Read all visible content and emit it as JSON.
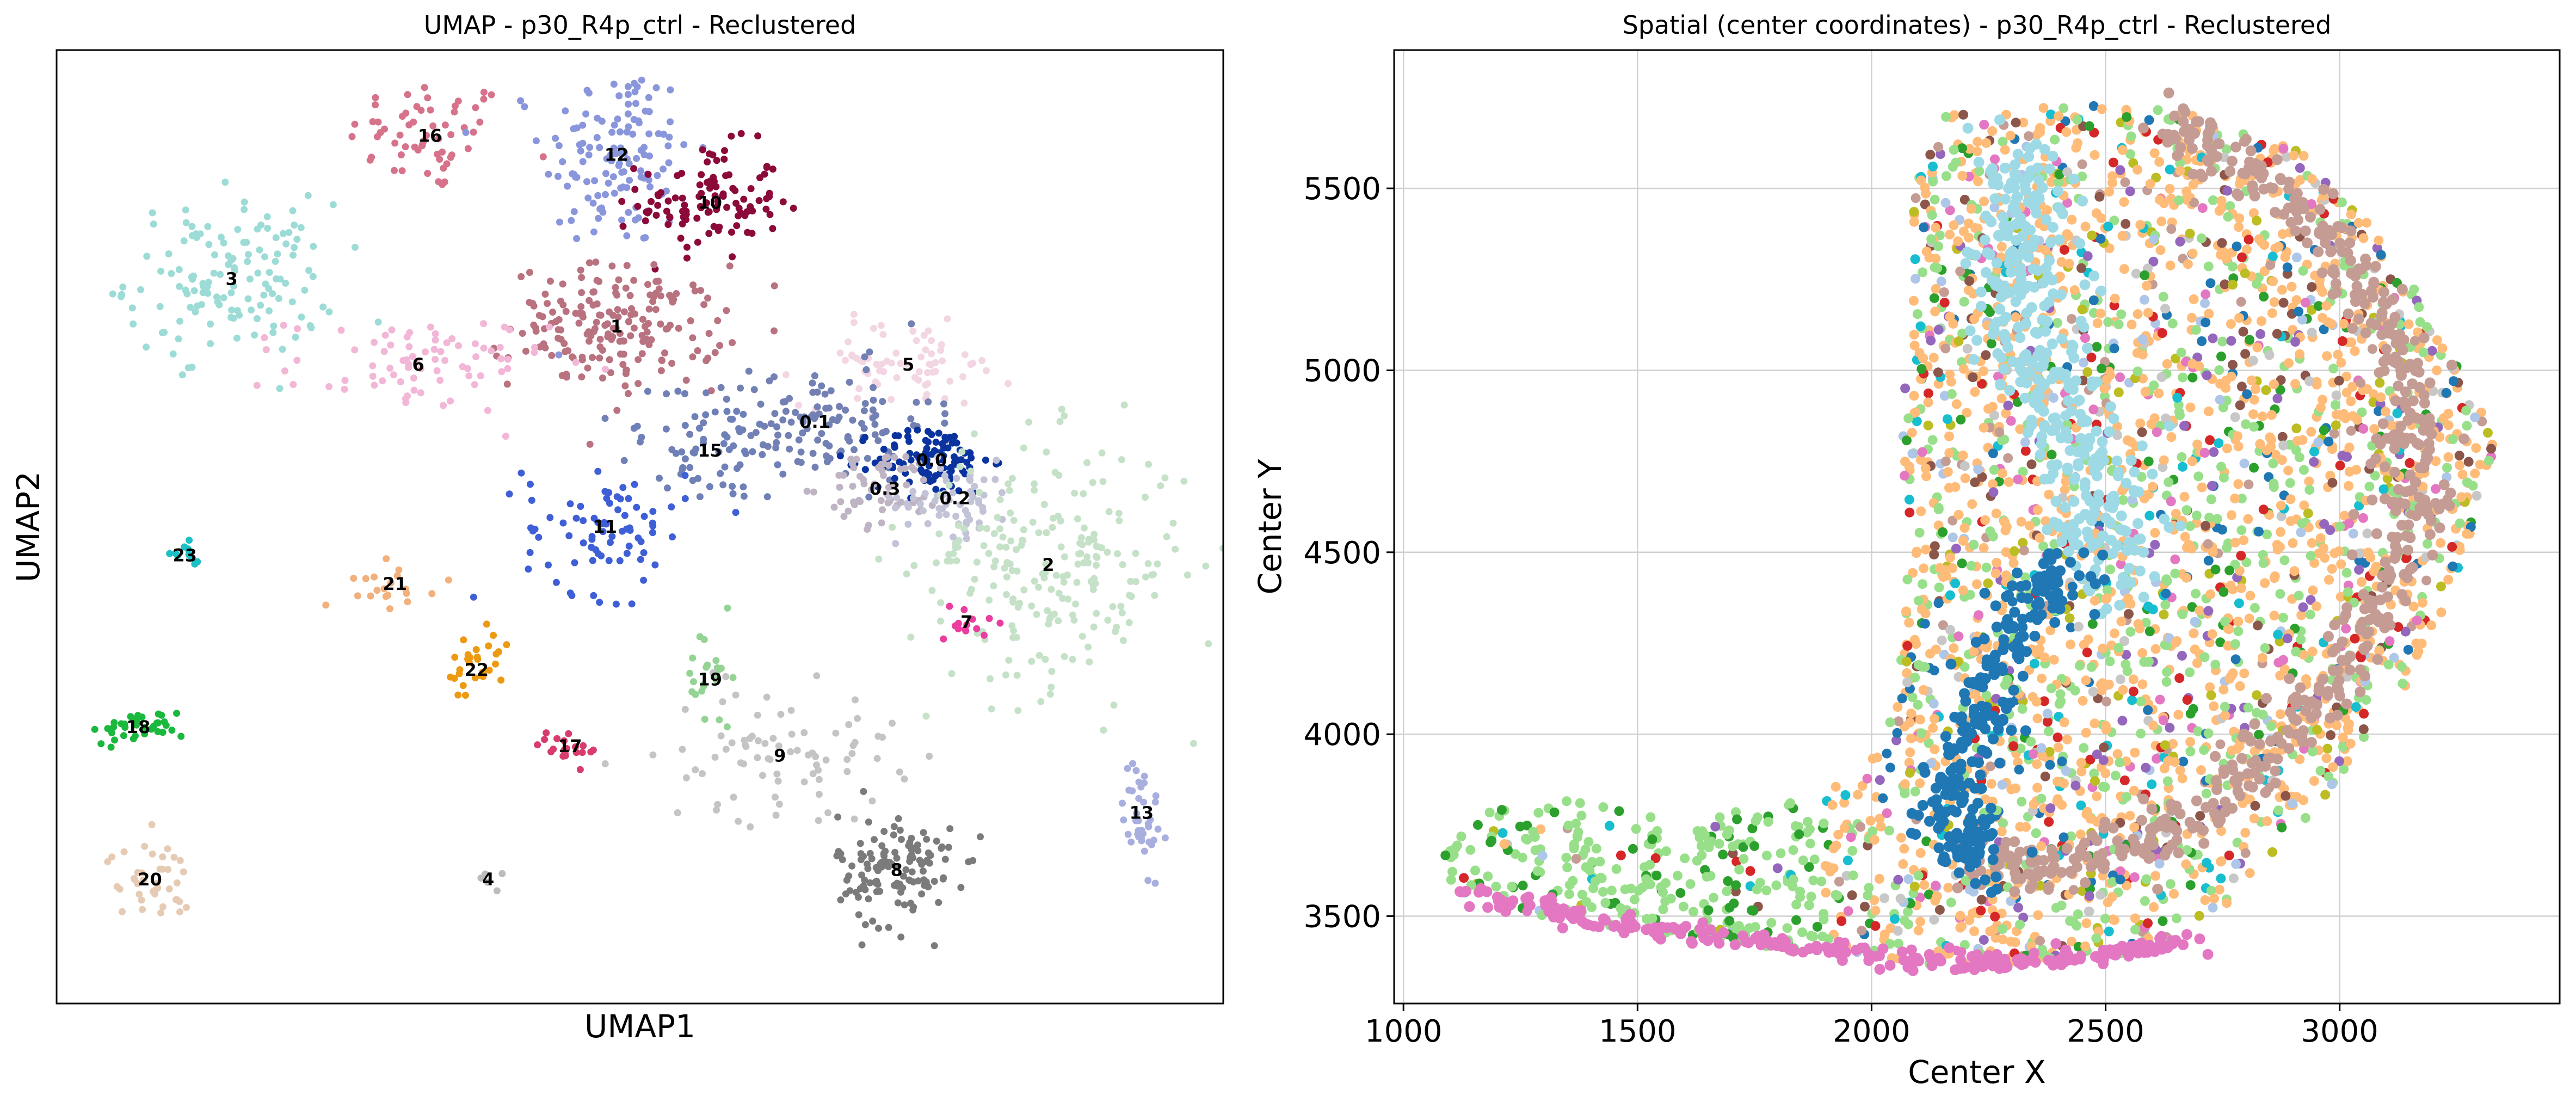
{
  "chart_data": [
    {
      "type": "scatter",
      "title": "UMAP - p30_R4p_ctrl - Reclustered",
      "xlabel": "UMAP1",
      "ylabel": "UMAP2",
      "xlim": [
        0,
        100
      ],
      "ylim": [
        0,
        100
      ],
      "grid": false,
      "clusters": [
        {
          "label": "16",
          "x": 32,
          "y": 91,
          "sx": 3.5,
          "sy": 3.0,
          "n": 60,
          "color": "#d6728a"
        },
        {
          "label": "12",
          "x": 48,
          "y": 89,
          "sx": 3.2,
          "sy": 5.0,
          "n": 130,
          "color": "#8a96dc"
        },
        {
          "label": "10",
          "x": 56,
          "y": 84,
          "sx": 3.0,
          "sy": 3.0,
          "n": 110,
          "color": "#8b0a3a"
        },
        {
          "label": "3",
          "x": 15,
          "y": 76,
          "sx": 4.5,
          "sy": 4.0,
          "n": 140,
          "color": "#9ddcd6"
        },
        {
          "label": "1",
          "x": 48,
          "y": 71,
          "sx": 4.5,
          "sy": 3.2,
          "n": 190,
          "color": "#b9727f"
        },
        {
          "label": "6",
          "x": 31,
          "y": 67,
          "sx": 5.5,
          "sy": 2.5,
          "n": 80,
          "color": "#f2b6d6"
        },
        {
          "label": "5",
          "x": 73,
          "y": 67,
          "sx": 4.5,
          "sy": 2.2,
          "n": 70,
          "color": "#f3d6e3"
        },
        {
          "label": "0.1",
          "x": 65,
          "y": 61,
          "sx": 5.0,
          "sy": 3.0,
          "n": 120,
          "color": "#7280b3"
        },
        {
          "label": "0.0",
          "x": 75,
          "y": 57,
          "sx": 2.5,
          "sy": 1.8,
          "n": 110,
          "color": "#0a33a0"
        },
        {
          "label": "15",
          "x": 56,
          "y": 58,
          "sx": 4.5,
          "sy": 3.0,
          "n": 60,
          "color": "#6f80b8"
        },
        {
          "label": "0.3",
          "x": 71,
          "y": 54,
          "sx": 2.5,
          "sy": 2.0,
          "n": 60,
          "color": "#bfb4c4"
        },
        {
          "label": "0.2",
          "x": 77,
          "y": 53,
          "sx": 2.5,
          "sy": 2.0,
          "n": 60,
          "color": "#c3c3d8"
        },
        {
          "label": "11",
          "x": 47,
          "y": 50,
          "sx": 3.5,
          "sy": 3.5,
          "n": 80,
          "color": "#3f5fd6"
        },
        {
          "label": "2",
          "x": 85,
          "y": 46,
          "sx": 6.0,
          "sy": 6.5,
          "n": 220,
          "color": "#c5e1c8"
        },
        {
          "label": "23",
          "x": 11,
          "y": 47,
          "sx": 0.6,
          "sy": 0.6,
          "n": 10,
          "color": "#1cc0c6"
        },
        {
          "label": "21",
          "x": 29,
          "y": 44,
          "sx": 2.0,
          "sy": 1.2,
          "n": 20,
          "color": "#f1b07c"
        },
        {
          "label": "7",
          "x": 78,
          "y": 40,
          "sx": 1.0,
          "sy": 1.2,
          "n": 15,
          "color": "#ea3d9f"
        },
        {
          "label": "22",
          "x": 36,
          "y": 35,
          "sx": 1.5,
          "sy": 2.0,
          "n": 30,
          "color": "#ec9a12"
        },
        {
          "label": "19",
          "x": 56,
          "y": 34,
          "sx": 1.0,
          "sy": 3.0,
          "n": 25,
          "color": "#94d394"
        },
        {
          "label": "18",
          "x": 7,
          "y": 29,
          "sx": 2.0,
          "sy": 0.8,
          "n": 35,
          "color": "#1bb83e"
        },
        {
          "label": "17",
          "x": 44,
          "y": 27,
          "sx": 1.5,
          "sy": 1.0,
          "n": 20,
          "color": "#d83c6c"
        },
        {
          "label": "9",
          "x": 62,
          "y": 26,
          "sx": 5.0,
          "sy": 3.5,
          "n": 80,
          "color": "#c4c4c4"
        },
        {
          "label": "13",
          "x": 93,
          "y": 20,
          "sx": 0.8,
          "sy": 3.0,
          "n": 40,
          "color": "#a8aede"
        },
        {
          "label": "20",
          "x": 8,
          "y": 13,
          "sx": 1.8,
          "sy": 2.0,
          "n": 40,
          "color": "#e6cbb4"
        },
        {
          "label": "8",
          "x": 72,
          "y": 14,
          "sx": 2.5,
          "sy": 3.0,
          "n": 130,
          "color": "#7b7b7b"
        },
        {
          "label": "4",
          "x": 37,
          "y": 13,
          "sx": 0.6,
          "sy": 0.6,
          "n": 5,
          "color": "#bcbcbc"
        }
      ]
    },
    {
      "type": "scatter",
      "title": "Spatial (center coordinates) - p30_R4p_ctrl - Reclustered",
      "xlabel": "Center X",
      "ylabel": "Center Y",
      "xlim": [
        980,
        3470
      ],
      "ylim": [
        3260,
        5880
      ],
      "xticks": [
        "1000",
        "1500",
        "2000",
        "2500",
        "3000"
      ],
      "yticks": [
        "3500",
        "4000",
        "4500",
        "5000",
        "5500"
      ],
      "grid": true,
      "palette": [
        "#98df8a",
        "#ffbb78",
        "#2ca02c",
        "#1f77b4",
        "#9467bd",
        "#c49c94",
        "#bcbd22",
        "#d62728",
        "#e377c2",
        "#c7c7c7",
        "#17becf",
        "#aec7e8",
        "#8c564b"
      ],
      "bands": [
        {
          "name": "light-blue band",
          "color": "#9edae5",
          "points": [
            [
              2300,
              5580
            ],
            [
              2330,
              5450
            ],
            [
              2300,
              5300
            ],
            [
              2320,
              5150
            ],
            [
              2380,
              5000
            ],
            [
              2420,
              4850
            ],
            [
              2470,
              4700
            ],
            [
              2500,
              4550
            ],
            [
              2490,
              4420
            ]
          ],
          "width": 55
        },
        {
          "name": "pink-brown arc",
          "color": "#c49c94",
          "points": [
            [
              2610,
              5680
            ],
            [
              2800,
              5570
            ],
            [
              2960,
              5400
            ],
            [
              3080,
              5170
            ],
            [
              3150,
              4930
            ],
            [
              3160,
              4700
            ],
            [
              3120,
              4450
            ],
            [
              3020,
              4220
            ],
            [
              2880,
              3990
            ],
            [
              2720,
              3800
            ],
            [
              2540,
              3680
            ],
            [
              2350,
              3640
            ],
            [
              2200,
              3680
            ]
          ],
          "width": 35
        },
        {
          "name": "dark-blue arc",
          "color": "#1f77b4",
          "points": [
            [
              2440,
              4480
            ],
            [
              2360,
              4380
            ],
            [
              2280,
              4200
            ],
            [
              2220,
              4020
            ],
            [
              2180,
              3850
            ],
            [
              2180,
              3710
            ],
            [
              2250,
              3640
            ]
          ],
          "width": 40
        },
        {
          "name": "bottom pink edge",
          "color": "#e377c2",
          "points": [
            [
              1130,
              3560
            ],
            [
              1400,
              3490
            ],
            [
              1700,
              3440
            ],
            [
              2000,
              3390
            ],
            [
              2250,
              3370
            ],
            [
              2500,
              3390
            ],
            [
              2700,
              3430
            ]
          ],
          "width": 14
        }
      ]
    }
  ]
}
